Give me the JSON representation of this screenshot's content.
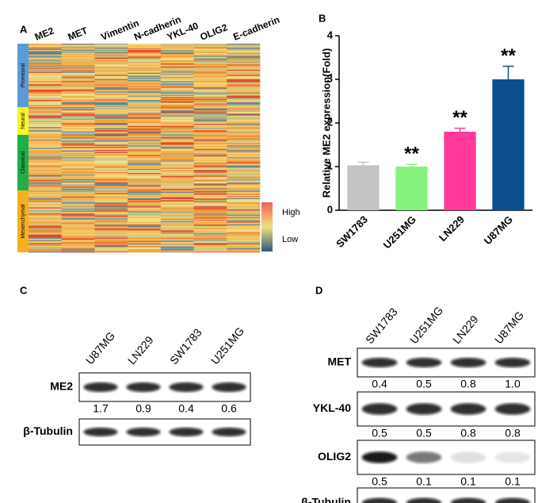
{
  "panel_labels": [
    "A",
    "B",
    "C",
    "D"
  ],
  "heatmap": {
    "genes": [
      "ME2",
      "MET",
      "Vimentin",
      "N-cadherin",
      "YKL-40",
      "OLIG2",
      "E-cadherin"
    ],
    "subtypes": [
      "Proneural",
      "Neural",
      "Classical",
      "Mesenchymal"
    ],
    "legend_high": "High",
    "legend_low": "Low"
  },
  "chart_data": {
    "type": "bar",
    "y_label": "Relative ME2 expression(Fold)",
    "categories": [
      "SW1783",
      "U251MG",
      "LN229",
      "U87MG"
    ],
    "values": [
      1.03,
      1.0,
      1.8,
      3.0
    ],
    "errors": [
      0.07,
      0.05,
      0.08,
      0.3
    ],
    "colors": [
      "#c3c3c3",
      "#86f27e",
      "#ff3a9a",
      "#0b4f8f"
    ],
    "ylim": [
      0,
      4
    ],
    "yticks": [
      0,
      1,
      2,
      3,
      4
    ],
    "annotations": [
      {
        "index": 1,
        "text": "**"
      },
      {
        "index": 2,
        "text": "**"
      },
      {
        "index": 3,
        "text": "**"
      }
    ]
  },
  "blot_c": {
    "lanes": [
      "U87MG",
      "LN229",
      "SW1783",
      "U251MG"
    ],
    "rows": [
      {
        "label": "ME2",
        "values": [
          "1.7",
          "0.9",
          "0.4",
          "0.6"
        ]
      },
      {
        "label": "β-Tubulin"
      }
    ]
  },
  "blot_d": {
    "lanes": [
      "SW1783",
      "U251MG",
      "LN229",
      "U87MG"
    ],
    "rows": [
      {
        "label": "MET",
        "values": [
          "0.4",
          "0.5",
          "0.8",
          "1.0"
        ]
      },
      {
        "label": "YKL-40",
        "values": [
          "0.5",
          "0.5",
          "0.8",
          "0.8"
        ]
      },
      {
        "label": "OLIG2",
        "values": [
          "0.5",
          "0.1",
          "0.1",
          "0.1"
        ]
      },
      {
        "label": "β-Tubulin"
      }
    ]
  }
}
